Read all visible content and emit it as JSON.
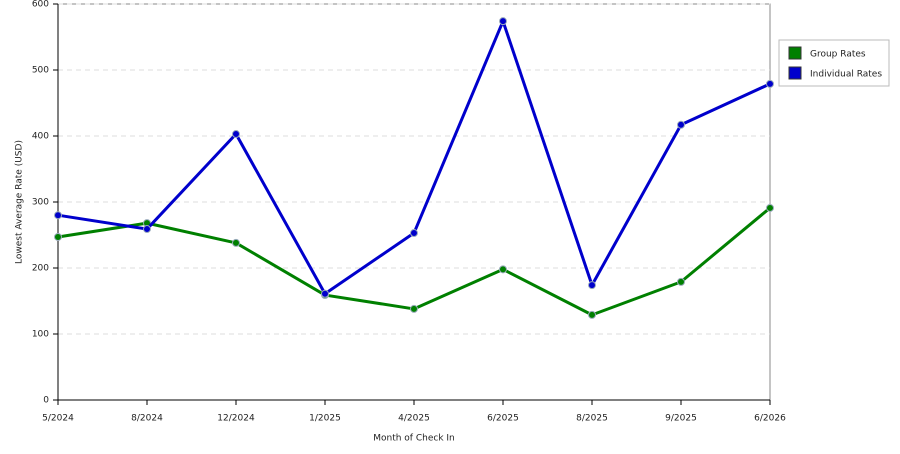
{
  "chart_data": {
    "type": "line",
    "x_label": "Month of Check In",
    "y_label": "Lowest Average Rate (USD)",
    "categories": [
      "5/2024",
      "8/2024",
      "12/2024",
      "1/2025",
      "4/2025",
      "6/2025",
      "8/2025",
      "9/2025",
      "6/2026"
    ],
    "series": [
      {
        "name": "Group Rates",
        "color": "#008000",
        "values": [
          247,
          268,
          238,
          159,
          138,
          198,
          129,
          179,
          291
        ]
      },
      {
        "name": "Individual Rates",
        "color": "#0000cc",
        "values": [
          280,
          259,
          403,
          161,
          253,
          574,
          174,
          417,
          479
        ]
      }
    ],
    "ylim": [
      0,
      600
    ],
    "yticks": [
      0,
      100,
      200,
      300,
      400,
      500,
      600
    ],
    "grid": true,
    "legend": "right"
  }
}
